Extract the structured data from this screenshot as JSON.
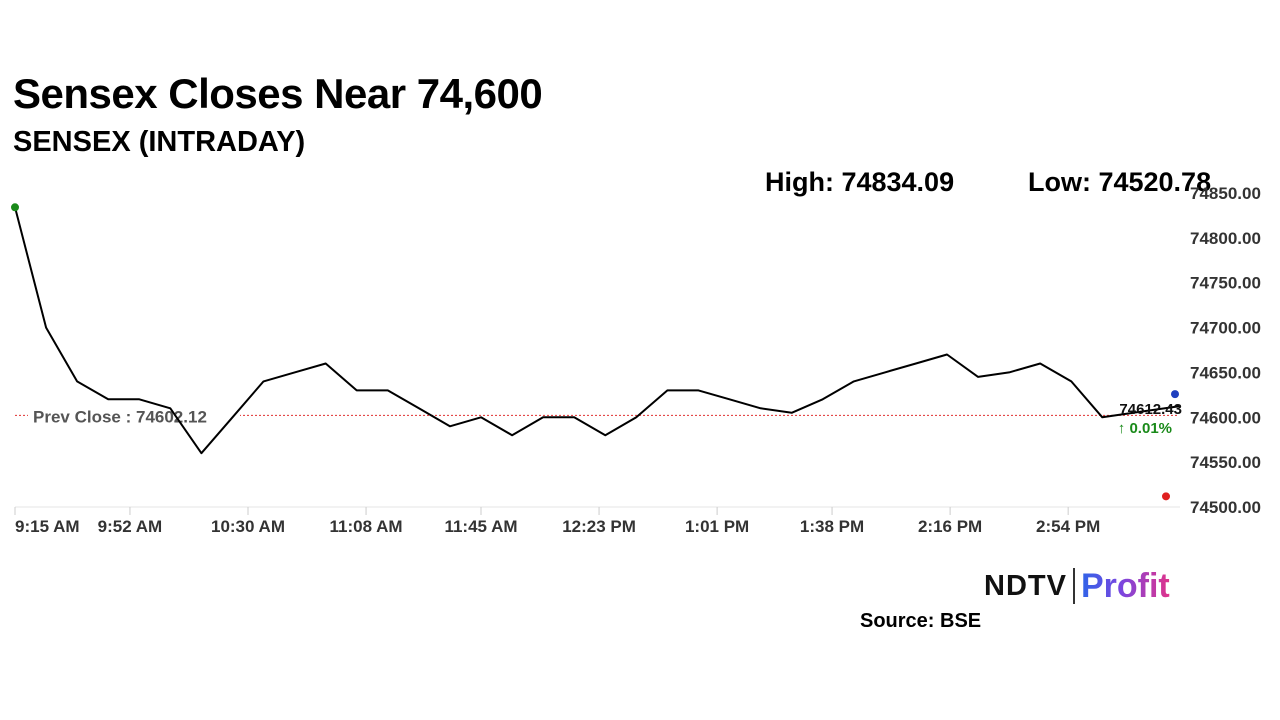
{
  "header": {
    "title": "Sensex Closes Near 74,600",
    "subtitle": "SENSEX (INTRADAY)",
    "high_label": "High: 74834.09",
    "low_label": "Low: 74520.78"
  },
  "footer": {
    "brand_ndtv": "NDTV",
    "brand_profit": "Profit",
    "source": "Source: BSE"
  },
  "colors": {
    "line": "#000000",
    "prev_close_line": "#e03030",
    "open_marker": "#1a8a1a",
    "low_marker": "#e02020",
    "last_marker": "#1f3fbf",
    "change_positive": "#1a8a1a",
    "axis_text": "#333333"
  },
  "chart_data": {
    "type": "line",
    "title": "SENSEX (INTRADAY)",
    "x": [
      "9:15 AM",
      "9:25 AM",
      "9:35 AM",
      "9:45 AM",
      "9:55 AM",
      "10:05 AM",
      "10:15 AM",
      "10:25 AM",
      "10:35 AM",
      "10:45 AM",
      "10:55 AM",
      "11:05 AM",
      "11:15 AM",
      "11:25 AM",
      "11:35 AM",
      "11:45 AM",
      "11:55 AM",
      "12:05 PM",
      "12:15 PM",
      "12:25 PM",
      "12:35 PM",
      "12:45 PM",
      "12:55 PM",
      "1:05 PM",
      "1:15 PM",
      "1:25 PM",
      "1:35 PM",
      "1:45 PM",
      "1:55 PM",
      "2:05 PM",
      "2:15 PM",
      "2:25 PM",
      "2:35 PM",
      "2:45 PM",
      "2:55 PM",
      "3:05 PM",
      "3:15 PM",
      "3:30 PM"
    ],
    "series": [
      {
        "values": [
          74834.09,
          74700,
          74640,
          74620,
          74620,
          74610,
          74560,
          74600,
          74640,
          74650,
          74660,
          74630,
          74630,
          74610,
          74590,
          74600,
          74580,
          74600,
          74600,
          74580,
          74600,
          74630,
          74630,
          74620,
          74610,
          74605,
          74620,
          74640,
          74650,
          74660,
          74670,
          74645,
          74650,
          74660,
          74640,
          74600,
          74605,
          74612.43
        ]
      }
    ],
    "x_ticks": [
      "9:15 AM",
      "9:52 AM",
      "10:30 AM",
      "11:08 AM",
      "11:45 AM",
      "12:23 PM",
      "1:01 PM",
      "1:38 PM",
      "2:16 PM",
      "2:54 PM"
    ],
    "y_ticks": [
      "74500.00",
      "74550.00",
      "74600.00",
      "74650.00",
      "74700.00",
      "74750.00",
      "74800.00",
      "74850.00"
    ],
    "ylim": [
      74500,
      74850
    ],
    "grid": false,
    "prev_close": 74602.12,
    "prev_close_label": "Prev Close : 74602.12",
    "last_value": 74612.43,
    "last_label": "74612.43",
    "change_label": "↑ 0.01%",
    "high": 74834.09,
    "low": 74520.78
  }
}
